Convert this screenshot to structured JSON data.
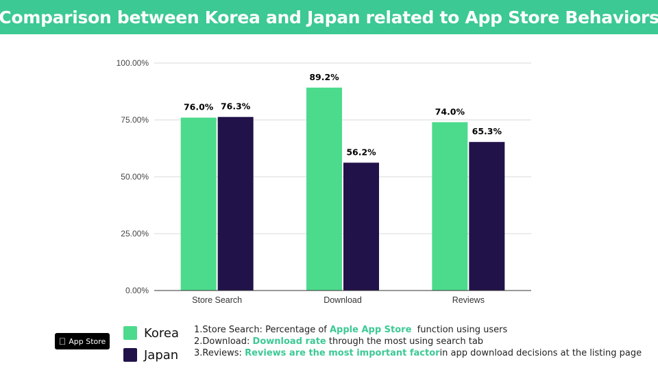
{
  "header": {
    "title": "Comparison between Korea and Japan related to App Store Behaviors"
  },
  "colors": {
    "header_bg": "#3cc994",
    "korea": "#4cdb8c",
    "japan": "#22124a",
    "highlight": "#3cc994"
  },
  "chart_data": {
    "type": "bar",
    "title": "",
    "xlabel": "",
    "ylabel": "",
    "ylim": [
      0,
      100
    ],
    "yticks": [
      0,
      25,
      50,
      75,
      100
    ],
    "ytick_labels": [
      "0.00%",
      "25.00%",
      "50.00%",
      "75.00%",
      "100.00%"
    ],
    "categories": [
      "Store Search",
      "Download",
      "Reviews"
    ],
    "series": [
      {
        "name": "Korea",
        "values": [
          76.0,
          89.2,
          74.0
        ],
        "labels": [
          "76.0%",
          "89.2%",
          "74.0%"
        ],
        "color": "#4cdb8c"
      },
      {
        "name": "Japan",
        "values": [
          76.3,
          56.2,
          65.3
        ],
        "labels": [
          "76.3%",
          "56.2%",
          "65.3%"
        ],
        "color": "#22124a"
      }
    ],
    "grid": true,
    "legend_position": "bottom-left"
  },
  "badge": {
    "icon": "apple-icon",
    "label": "App Store"
  },
  "legend": {
    "korea": "Korea",
    "japan": "Japan"
  },
  "notes": {
    "line1": {
      "prefix": "1.Store Search: Percentage of ",
      "highlight": "Apple App Store",
      "suffix": "  function using users"
    },
    "line2": {
      "prefix": "2.Download: ",
      "highlight": "Download rate",
      "suffix": " through the most using search tab"
    },
    "line3": {
      "prefix": "3.Reviews: ",
      "highlight": "Reviews are the most important factor",
      "suffix": "in app download decisions at the listing page"
    }
  }
}
